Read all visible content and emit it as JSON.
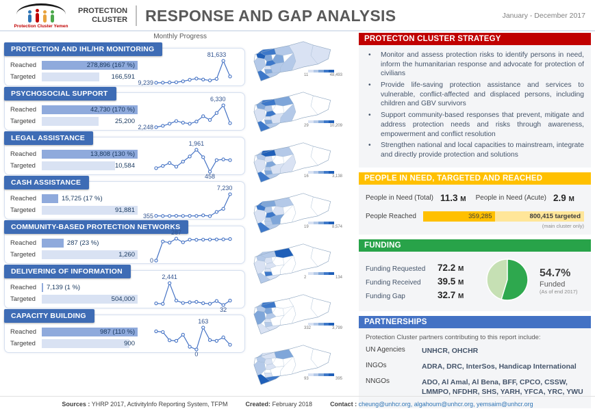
{
  "header": {
    "logo_caption": "Protection Cluster Yemen",
    "org_line1": "PROTECTION",
    "org_line2": "CLUSTER",
    "title": "RESPONSE AND GAP ANALYSIS",
    "period": "January - December 2017"
  },
  "monthly_progress_label": "Monthly Progress",
  "row_labels": {
    "reached": "Reached",
    "targeted": "Targeted"
  },
  "colors": {
    "header_blue": "#3E6CB5",
    "bar_reached": "#8FAADC",
    "bar_targeted": "#D9E2F3",
    "line": "#4472C4",
    "red": "#C00000",
    "amber": "#FFC000",
    "amber_light": "#FFE699",
    "green": "#28A349",
    "blue": "#4472C4",
    "pie_dark": "#2EA84E",
    "pie_light": "#C6E0B4",
    "map_palette": [
      "#FFFFFF",
      "#D9E2F3",
      "#B4C9E8",
      "#7FA6D9",
      "#3D78C9",
      "#1F5FB8"
    ],
    "logo_figures": [
      "#2E75B6",
      "#C00000",
      "#E8A33D",
      "#4BA84B"
    ]
  },
  "sections": [
    {
      "title": "PROTECTION AND IHL/HR MONITORING",
      "reached": 278896,
      "targeted": 166591,
      "reached_label": "278,896 (167 %)",
      "targeted_label": "166,591",
      "spark": [
        9239,
        9500,
        10200,
        11000,
        14000,
        19000,
        23000,
        20000,
        17000,
        22000,
        81633,
        30000
      ],
      "annotations": [
        {
          "text": "9,239",
          "idx": 0,
          "pos": "left"
        },
        {
          "text": "81,633",
          "idx": 10,
          "pos": "top-left"
        }
      ],
      "map": {
        "legend_min": "11",
        "legend_max": "48,493",
        "shades": {
          "mahrah": 1,
          "hadramaut": 1,
          "jawf": 2,
          "marib": 3,
          "shabwah": 2,
          "saada": 4,
          "hajjah": 5,
          "amran": 3,
          "hudaydah": 2,
          "sanaa": 4,
          "dhamar": 1,
          "bayda": 2,
          "ibb": 3,
          "taizz": 4,
          "aden": 2
        }
      }
    },
    {
      "title": "PSYCHOSOCIAL SUPPORT",
      "reached": 42730,
      "targeted": 25200,
      "reached_label": "42,730 (170 %)",
      "targeted_label": "25,200",
      "spark": [
        2248,
        2500,
        2900,
        3400,
        3100,
        2900,
        3300,
        4300,
        3600,
        4900,
        6330,
        3000
      ],
      "annotations": [
        {
          "text": "2,248",
          "idx": 0,
          "pos": "left"
        },
        {
          "text": "6,330",
          "idx": 10,
          "pos": "top-left"
        }
      ],
      "map": {
        "legend_min": "29",
        "legend_max": "10,209",
        "shades": {
          "mahrah": 0,
          "hadramaut": 0,
          "jawf": 3,
          "marib": 0,
          "shabwah": 2,
          "saada": 4,
          "hajjah": 3,
          "amran": 2,
          "hudaydah": 1,
          "sanaa": 4,
          "dhamar": 1,
          "bayda": 1,
          "ibb": 3,
          "taizz": 4,
          "aden": 2
        }
      }
    },
    {
      "title": "LEGAL ASSISTANCE",
      "reached": 13808,
      "targeted": 10584,
      "reached_label": "13,808 (130 %)",
      "targeted_label": "10,584",
      "spark": [
        700,
        850,
        1050,
        800,
        1150,
        1500,
        1961,
        1450,
        458,
        1250,
        1300,
        1250
      ],
      "annotations": [
        {
          "text": "1,961",
          "idx": 6,
          "pos": "top"
        },
        {
          "text": "458",
          "idx": 8,
          "pos": "bottom"
        }
      ],
      "map": {
        "legend_min": "16",
        "legend_max": "3,138",
        "shades": {
          "mahrah": 0,
          "hadramaut": 0,
          "jawf": 2,
          "marib": 0,
          "shabwah": 1,
          "saada": 5,
          "hajjah": 2,
          "amran": 1,
          "hudaydah": 1,
          "sanaa": 3,
          "dhamar": 2,
          "bayda": 1,
          "ibb": 3,
          "taizz": 4,
          "aden": 2
        }
      }
    },
    {
      "title": "CASH ASSISTANCE",
      "reached": 15725,
      "targeted": 91881,
      "reached_label": "15,725 (17 %)",
      "targeted_label": "91,881",
      "spark": [
        355,
        320,
        340,
        360,
        340,
        350,
        330,
        520,
        280,
        1600,
        2600,
        7230
      ],
      "annotations": [
        {
          "text": "355",
          "idx": 0,
          "pos": "left"
        },
        {
          "text": "7,230",
          "idx": 11,
          "pos": "top-left"
        }
      ],
      "map": {
        "legend_min": "19",
        "legend_max": "8,574",
        "shades": {
          "mahrah": 0,
          "hadramaut": 0,
          "jawf": 2,
          "marib": 1,
          "shabwah": 0,
          "saada": 3,
          "hajjah": 4,
          "amran": 2,
          "hudaydah": 1,
          "sanaa": 4,
          "dhamar": 2,
          "bayda": 3,
          "ibb": 2,
          "taizz": 4,
          "aden": 2
        }
      }
    },
    {
      "title": "COMMUNITY-BASED PROTECTION NETWORKS",
      "reached": 287,
      "targeted": 1260,
      "reached_label": "287 (23 %)",
      "targeted_label": "1,260",
      "spark": [
        0,
        250,
        235,
        287,
        240,
        275,
        272,
        275,
        276,
        277,
        278,
        282
      ],
      "annotations": [
        {
          "text": "0",
          "idx": 0,
          "pos": "left"
        },
        {
          "text": "287",
          "idx": 3,
          "pos": "top"
        }
      ],
      "map": {
        "legend_min": "2",
        "legend_max": "134",
        "shades": {
          "mahrah": 0,
          "hadramaut": 0,
          "jawf": 5,
          "marib": 0,
          "shabwah": 0,
          "saada": 2,
          "hajjah": 2,
          "amran": 1,
          "hudaydah": 1,
          "sanaa": 1,
          "dhamar": 1,
          "bayda": 0,
          "ibb": 4,
          "taizz": 2,
          "aden": 1
        }
      }
    },
    {
      "title": "DELIVERING OF INFORMATION",
      "reached": 7139,
      "targeted": 504000,
      "reached_label": "7,139 (1 %)",
      "targeted_label": "504,000",
      "spark": [
        210,
        160,
        2441,
        520,
        260,
        330,
        380,
        230,
        170,
        470,
        32,
        520
      ],
      "annotations": [
        {
          "text": "2,441",
          "idx": 2,
          "pos": "top"
        },
        {
          "text": "32",
          "idx": 10,
          "pos": "bottom"
        }
      ],
      "map": {
        "legend_min": "332",
        "legend_max": "3,799",
        "shades": {
          "mahrah": 0,
          "hadramaut": 0,
          "jawf": 0,
          "marib": 0,
          "shabwah": 0,
          "saada": 4,
          "hajjah": 2,
          "amran": 3,
          "hudaydah": 3,
          "sanaa": 2,
          "dhamar": 1,
          "bayda": 0,
          "ibb": 2,
          "taizz": 1,
          "aden": 1
        }
      }
    },
    {
      "title": "CAPACITY BUILDING",
      "reached": 987,
      "targeted": 900,
      "reached_label": "987 (110 %)",
      "targeted_label": "900",
      "spark": [
        135,
        130,
        68,
        64,
        110,
        20,
        0,
        163,
        70,
        64,
        90,
        35
      ],
      "annotations": [
        {
          "text": "0",
          "idx": 6,
          "pos": "bottom"
        },
        {
          "text": "163",
          "idx": 7,
          "pos": "top"
        }
      ],
      "map": {
        "legend_min": "93",
        "legend_max": "395",
        "shades": {
          "mahrah": 0,
          "hadramaut": 0,
          "jawf": 3,
          "marib": 0,
          "shabwah": 0,
          "saada": 1,
          "hajjah": 2,
          "amran": 1,
          "hudaydah": 2,
          "sanaa": 1,
          "dhamar": 0,
          "bayda": 0,
          "ibb": 1,
          "taizz": 5,
          "aden": 4
        }
      }
    }
  ],
  "strategy": {
    "title": "PROTECTON CLUSTER STRATEGY",
    "bullets": [
      "Monitor and assess protection risks to identify persons in need, inform the humanitarian response and advocate for protection of civilians",
      "Provide life-saving protection assistance and services to vulnerable, conflict-affected and displaced persons, including children and GBV survivors",
      "Support community-based responses that prevent, mitigate and address protection needs and risks through awareness, empowerment and conflict resolution",
      "Strengthen national and local capacities to mainstream, integrate and directly provide protection and solutions"
    ]
  },
  "pin": {
    "title": "PEOPLE IN NEED, TARGETED AND REACHED",
    "total_label": "People in Need (Total)",
    "total_value": "11.3",
    "total_unit": "M",
    "acute_label": "People in Need (Acute)",
    "acute_value": "2.9",
    "acute_unit": "M",
    "reached_label": "People Reached",
    "reached_value": "359,285",
    "reached_num": 359285,
    "targeted_value": "800,415 targeted",
    "targeted_num": 800415,
    "note": "(main cluster only)"
  },
  "funding": {
    "title": "FUNDING",
    "rows": [
      {
        "label": "Funding Requested",
        "value": "72.2",
        "unit": "M"
      },
      {
        "label": "Funding Received",
        "value": "39.5",
        "unit": "M"
      },
      {
        "label": "Funding Gap",
        "value": "32.7",
        "unit": "M"
      }
    ],
    "funded_pct": "54.7%",
    "funded_pct_num": 54.7,
    "funded_label": "Funded",
    "as_of": "(As of end 2017)"
  },
  "partnerships": {
    "title": "PARTNERSHIPS",
    "intro": "Protection Cluster partners contributing to this report include:",
    "rows": [
      {
        "label": "UN Agencies",
        "value": "UNHCR, OHCHR"
      },
      {
        "label": "INGOs",
        "value": "ADRA, DRC, InterSos, Handicap International"
      },
      {
        "label": "NNGOs",
        "value": "ADO, Al Amal, Al Bena, BFF, CPCO, CSSW, LMMPO, NFDHR, SHS, YARH, YFCA, YRC, YWU"
      }
    ]
  },
  "footer": {
    "sources_label": "Sources :",
    "sources": "YHRP 2017, ActivityInfo Reporting System, TFPM",
    "created_label": "Created:",
    "created": "February 2018",
    "contact_label": "Contact :",
    "contact": "cheung@unhcr.org, algahoum@unhcr.org, yemsaim@unhcr.org"
  },
  "chart_data": [
    {
      "type": "bar",
      "title": "Reached vs Targeted by activity (Jan - Dec 2017)",
      "categories": [
        "PROTECTION AND IHL/HR MONITORING",
        "PSYCHOSOCIAL SUPPORT",
        "LEGAL ASSISTANCE",
        "CASH ASSISTANCE",
        "COMMUNITY-BASED PROTECTION NETWORKS",
        "DELIVERING OF INFORMATION",
        "CAPACITY BUILDING"
      ],
      "series": [
        {
          "name": "Reached",
          "values": [
            278896,
            42730,
            13808,
            15725,
            287,
            7139,
            987
          ]
        },
        {
          "name": "Reached % of target",
          "values": [
            167,
            170,
            130,
            17,
            23,
            1,
            110
          ]
        },
        {
          "name": "Targeted",
          "values": [
            166591,
            25200,
            10584,
            91881,
            1260,
            504000,
            900
          ]
        }
      ]
    },
    {
      "type": "line",
      "title": "Monthly Progress (12 months, labeled points only; other points estimated)",
      "x": [
        1,
        2,
        3,
        4,
        5,
        6,
        7,
        8,
        9,
        10,
        11,
        12
      ],
      "series": [
        {
          "name": "Protection and IHL/HR Monitoring",
          "values": [
            9239,
            9500,
            10200,
            11000,
            14000,
            19000,
            23000,
            20000,
            17000,
            22000,
            81633,
            30000
          ]
        },
        {
          "name": "Psychosocial Support",
          "values": [
            2248,
            2500,
            2900,
            3400,
            3100,
            2900,
            3300,
            4300,
            3600,
            4900,
            6330,
            3000
          ]
        },
        {
          "name": "Legal Assistance",
          "values": [
            700,
            850,
            1050,
            800,
            1150,
            1500,
            1961,
            1450,
            458,
            1250,
            1300,
            1250
          ]
        },
        {
          "name": "Cash Assistance",
          "values": [
            355,
            320,
            340,
            360,
            340,
            350,
            330,
            520,
            280,
            1600,
            2600,
            7230
          ]
        },
        {
          "name": "Community-Based Protection Networks",
          "values": [
            0,
            250,
            235,
            287,
            240,
            275,
            272,
            275,
            276,
            277,
            278,
            282
          ]
        },
        {
          "name": "Delivering of Information",
          "values": [
            210,
            160,
            2441,
            520,
            260,
            330,
            380,
            230,
            170,
            470,
            32,
            520
          ]
        },
        {
          "name": "Capacity Building",
          "values": [
            135,
            130,
            68,
            64,
            110,
            20,
            0,
            163,
            70,
            64,
            90,
            35
          ]
        }
      ]
    },
    {
      "type": "bar",
      "title": "People Reached vs Targeted (main cluster only)",
      "categories": [
        "People Reached",
        "Targeted"
      ],
      "values": [
        359285,
        800415
      ]
    },
    {
      "type": "pie",
      "title": "Funding (As of end 2017)",
      "labels": [
        "Funded",
        "Gap"
      ],
      "values": [
        54.7,
        45.3
      ]
    }
  ]
}
